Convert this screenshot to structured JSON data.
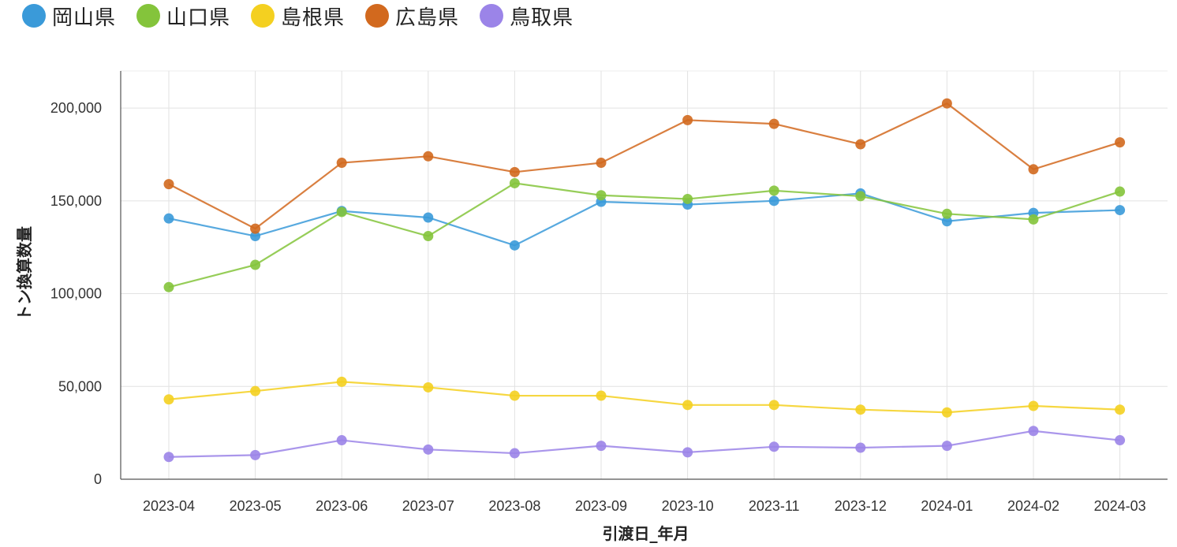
{
  "chart_data": {
    "type": "line",
    "xlabel": "引渡日_年月",
    "ylabel": "トン換算数量",
    "ylim": [
      0,
      220000
    ],
    "yticks": [
      0,
      50000,
      100000,
      150000,
      200000
    ],
    "ytick_labels": [
      "0",
      "50,000",
      "100,000",
      "150,000",
      "200,000"
    ],
    "grid": true,
    "legend_position": "top-left",
    "categories": [
      "2023-04",
      "2023-05",
      "2023-06",
      "2023-07",
      "2023-08",
      "2023-09",
      "2023-10",
      "2023-11",
      "2023-12",
      "2024-01",
      "2024-02",
      "2024-03"
    ],
    "series": [
      {
        "name": "岡山県",
        "color": "#3a9ad9",
        "values": [
          140500,
          131000,
          144500,
          141000,
          126000,
          149500,
          148000,
          150000,
          154000,
          139000,
          143500,
          145000
        ]
      },
      {
        "name": "山口県",
        "color": "#84c43b",
        "values": [
          103500,
          115500,
          144000,
          131000,
          159500,
          153000,
          151000,
          155500,
          152500,
          143000,
          140000,
          155000
        ]
      },
      {
        "name": "島根県",
        "color": "#f4d020",
        "values": [
          43000,
          47500,
          52500,
          49500,
          45000,
          45000,
          40000,
          40000,
          37500,
          36000,
          39500,
          37500
        ]
      },
      {
        "name": "広島県",
        "color": "#d2691e",
        "values": [
          159000,
          135000,
          170500,
          174000,
          165500,
          170500,
          193500,
          191500,
          180500,
          202500,
          167000,
          181500
        ]
      },
      {
        "name": "鳥取県",
        "color": "#9b84e8",
        "values": [
          12000,
          13000,
          21000,
          16000,
          14000,
          18000,
          14500,
          17500,
          17000,
          18000,
          26000,
          21000
        ]
      }
    ]
  }
}
